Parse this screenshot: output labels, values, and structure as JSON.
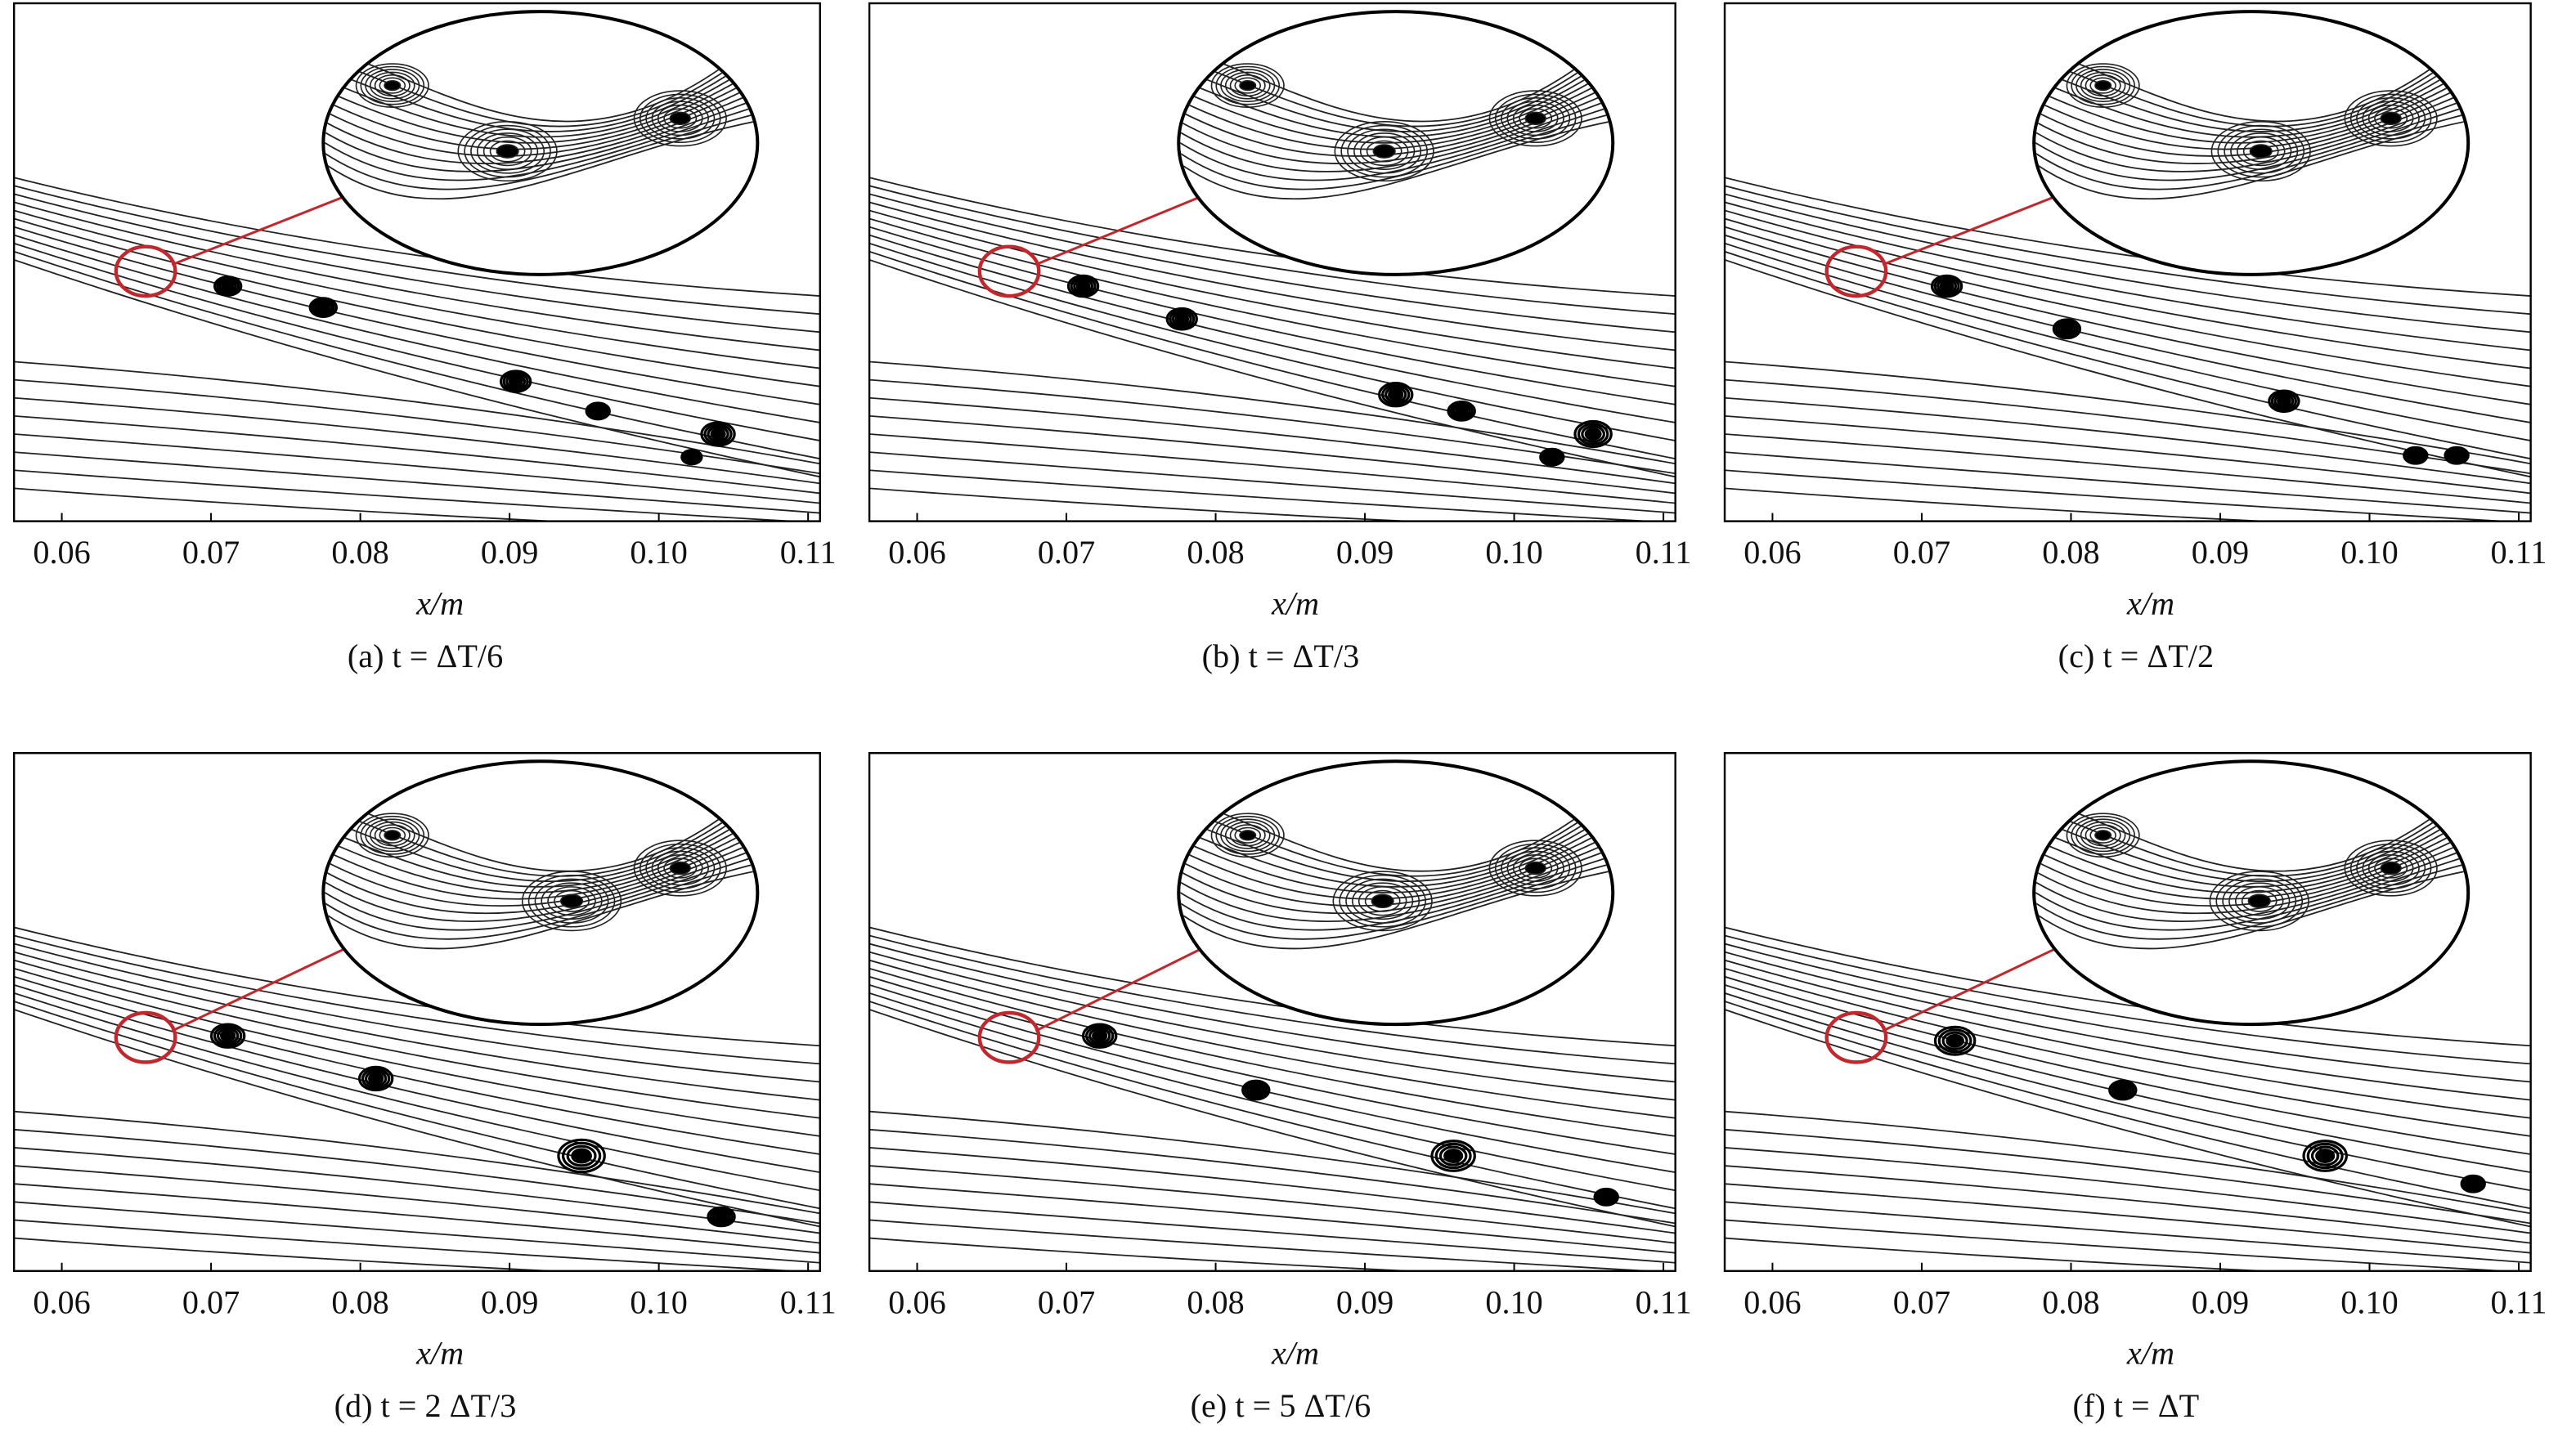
{
  "chart_data": [
    {
      "type": "streamline",
      "x_label": "x/m",
      "caption": "(a) t = ΔT/6",
      "xlim": [
        0.0568,
        0.1108
      ],
      "xticks": [
        0.06,
        0.07,
        0.08,
        0.09,
        {
          "value": 0.1,
          "label": "0.10"
        },
        0.11
      ]
    },
    {
      "type": "streamline",
      "x_label": "x/m",
      "caption": "(b) t = ΔT/3",
      "xlim": [
        0.0568,
        0.1108
      ],
      "xticks": [
        0.06,
        0.07,
        0.08,
        0.09,
        {
          "value": 0.1,
          "label": "0.10"
        },
        0.11
      ]
    },
    {
      "type": "streamline",
      "x_label": "x/m",
      "caption": "(c) t = ΔT/2",
      "xlim": [
        0.0568,
        0.1108
      ],
      "xticks": [
        0.06,
        0.07,
        0.08,
        0.09,
        {
          "value": 0.1,
          "label": "0.10"
        },
        0.11
      ]
    },
    {
      "type": "streamline",
      "x_label": "x/m",
      "caption": "(d) t = 2 ΔT/3",
      "xlim": [
        0.0568,
        0.1108
      ],
      "xticks": [
        0.06,
        0.07,
        0.08,
        0.09,
        {
          "value": 0.1,
          "label": "0.10"
        },
        0.11
      ]
    },
    {
      "type": "streamline",
      "x_label": "x/m",
      "caption": "(e) t = 5 ΔT/6",
      "xlim": [
        0.0568,
        0.1108
      ],
      "xticks": [
        0.06,
        0.07,
        0.08,
        0.09,
        {
          "value": 0.1,
          "label": "0.10"
        },
        0.11
      ]
    },
    {
      "type": "streamline",
      "x_label": "x/m",
      "caption": "(f) t = ΔT",
      "xlim": [
        0.0568,
        0.1108
      ],
      "xticks": [
        0.06,
        0.07,
        0.08,
        0.09,
        {
          "value": 0.1,
          "label": "0.10"
        },
        0.11
      ]
    }
  ]
}
